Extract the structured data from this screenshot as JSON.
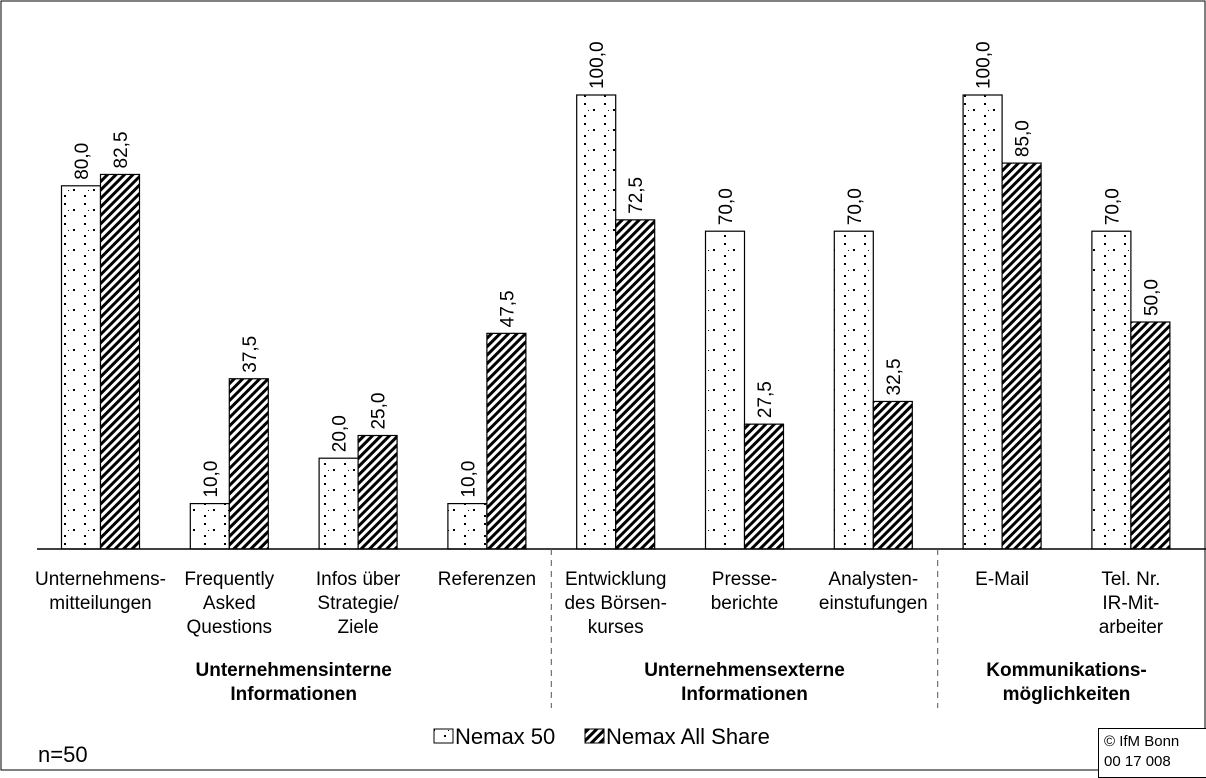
{
  "chart_data": {
    "type": "bar",
    "categories": [
      [
        "Unternehmens-",
        "mitteilungen"
      ],
      [
        "Frequently",
        "Asked",
        "Questions"
      ],
      [
        "Infos über",
        "Strategie/",
        "Ziele"
      ],
      [
        "Referenzen"
      ],
      [
        "Entwicklung",
        "des Börsen-",
        "kurses"
      ],
      [
        "Presse-",
        "berichte"
      ],
      [
        "Analysten-",
        "einstufungen"
      ],
      [
        "E-Mail"
      ],
      [
        "Tel. Nr.",
        "IR-Mit-",
        "arbeiter"
      ]
    ],
    "series": [
      {
        "name": "Nemax 50",
        "values": [
          80.0,
          10.0,
          20.0,
          10.0,
          100.0,
          70.0,
          70.0,
          100.0,
          70.0
        ],
        "labels": [
          "80,0",
          "10,0",
          "20,0",
          "10,0",
          "100,0",
          "70,0",
          "70,0",
          "100,0",
          "70,0"
        ]
      },
      {
        "name": "Nemax All Share",
        "values": [
          82.5,
          37.5,
          25.0,
          47.5,
          72.5,
          27.5,
          32.5,
          85.0,
          50.0
        ],
        "labels": [
          "82,5",
          "37,5",
          "25,0",
          "47,5",
          "72,5",
          "27,5",
          "32,5",
          "85,0",
          "50,0"
        ]
      }
    ],
    "groups": [
      {
        "label": [
          "Unternehmensinterne",
          "Informationen"
        ],
        "categories": [
          0,
          1,
          2,
          3
        ]
      },
      {
        "label": [
          "Unternehmensexterne",
          "Informationen"
        ],
        "categories": [
          4,
          5,
          6
        ]
      },
      {
        "label": [
          "Kommunikations-",
          "möglichkeiten"
        ],
        "categories": [
          7,
          8
        ]
      }
    ],
    "ylim": [
      0,
      100
    ],
    "grid": false,
    "legend_position": "bottom-center",
    "title": "",
    "xlabel": "",
    "ylabel": ""
  },
  "legend": [
    "Nemax 50",
    "Nemax All Share"
  ],
  "note": "n=50",
  "copyright": [
    "© IfM Bonn",
    "00 17 008"
  ]
}
